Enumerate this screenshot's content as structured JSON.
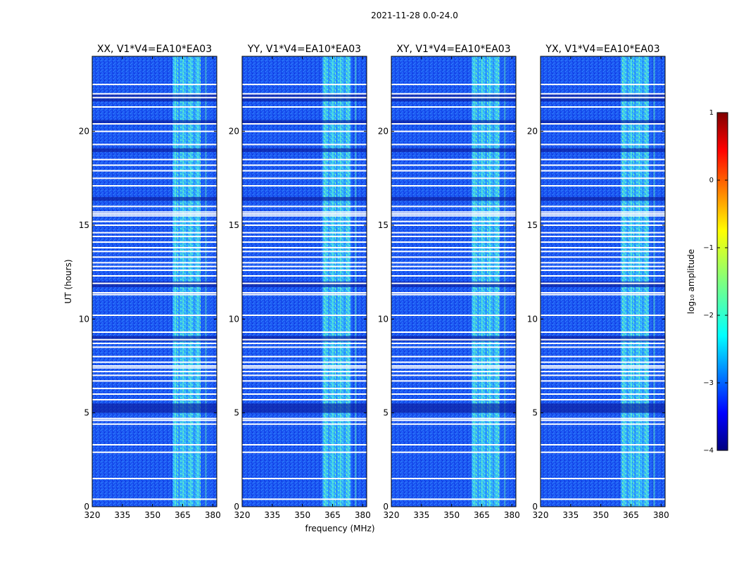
{
  "suptitle": "2021-11-28 0.0-24.0",
  "chart_data": {
    "type": "heatmap",
    "xlabel": "frequency (MHz)",
    "ylabel": "UT (hours)",
    "xlim": [
      320,
      382
    ],
    "ylim": [
      0,
      24
    ],
    "xticks": [
      320,
      335,
      350,
      365,
      380
    ],
    "yticks": [
      0,
      5,
      10,
      15,
      20
    ],
    "panels": [
      {
        "title": "XX, V1*V4=EA10*EA03"
      },
      {
        "title": "YY, V1*V4=EA10*EA03"
      },
      {
        "title": "XY, V1*V4=EA10*EA03"
      },
      {
        "title": "YX, V1*V4=EA10*EA03"
      }
    ],
    "bright_band_mhz": [
      360,
      374
    ],
    "background_log10_amplitude": -3.3,
    "band_log10_amplitude": -2.0,
    "dark_rows_hours": [
      [
        21.6,
        22.0
      ],
      [
        20.4,
        20.6
      ],
      [
        18.9,
        19.1
      ],
      [
        16.3,
        16.5
      ],
      [
        11.7,
        12.0
      ],
      [
        8.8,
        9.1
      ],
      [
        5.0,
        5.5
      ]
    ],
    "flagged_rows_hours": [
      0.4,
      1.5,
      2.9,
      3.3,
      4.4,
      4.6,
      4.7,
      5.7,
      6.0,
      6.3,
      6.7,
      7.0,
      7.2,
      7.4,
      7.5,
      7.7,
      8.0,
      8.5,
      8.7,
      8.9,
      9.3,
      10.2,
      11.3,
      11.4,
      11.9,
      12.3,
      12.6,
      12.8,
      13.0,
      13.3,
      13.6,
      13.8,
      14.1,
      14.4,
      14.6,
      15.0,
      15.2,
      15.5,
      15.6,
      15.7,
      16.0,
      17.1,
      17.5,
      17.9,
      18.2,
      18.5,
      19.3,
      20.0,
      20.4,
      21.3,
      21.8,
      22.0,
      22.5
    ],
    "colorbar": {
      "label": "log₁₀ amplitude",
      "range": [
        -4,
        1
      ],
      "ticks": [
        1,
        0,
        -1,
        -2,
        -3,
        -4
      ],
      "colormap": "jet"
    }
  },
  "colors": {
    "jet": [
      "#00007f",
      "#0000ff",
      "#007fff",
      "#00ffff",
      "#7fff7f",
      "#ffff00",
      "#ff7f00",
      "#ff0000",
      "#7f0000"
    ]
  }
}
